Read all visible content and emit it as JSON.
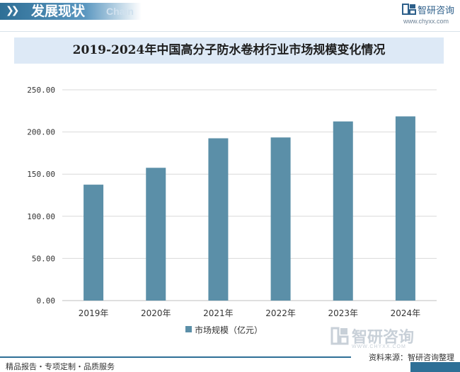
{
  "header": {
    "title": "发展现状",
    "subtitle": "Chain",
    "brand_name": "智研咨询",
    "brand_url": "www.chyxx.com"
  },
  "colors": {
    "bar": "#5b8fa8",
    "header": "#2e6f96",
    "title_band": "#dde9f6",
    "grid": "#d9d9d9"
  },
  "chart_data": {
    "type": "bar",
    "title": "2019-2024年中国高分子防水卷材行业市场规模变化情况",
    "categories": [
      "2019年",
      "2020年",
      "2021年",
      "2022年",
      "2023年",
      "2024年"
    ],
    "series": [
      {
        "name": "市场规模（亿元）",
        "values": [
          137.5,
          157.5,
          192.5,
          193.5,
          212.5,
          218.5
        ]
      }
    ],
    "yticks": [
      "0.00",
      "50.00",
      "100.00",
      "150.00",
      "200.00",
      "250.00"
    ],
    "ylim": [
      0,
      250
    ],
    "grid": true,
    "legend_position": "bottom"
  },
  "watermark": {
    "name": "智研咨询",
    "sub": "WWW.CHYXX.COM"
  },
  "source": "资料来源：智研咨询整理",
  "footer": "精品报告・专项定制・品质服务"
}
